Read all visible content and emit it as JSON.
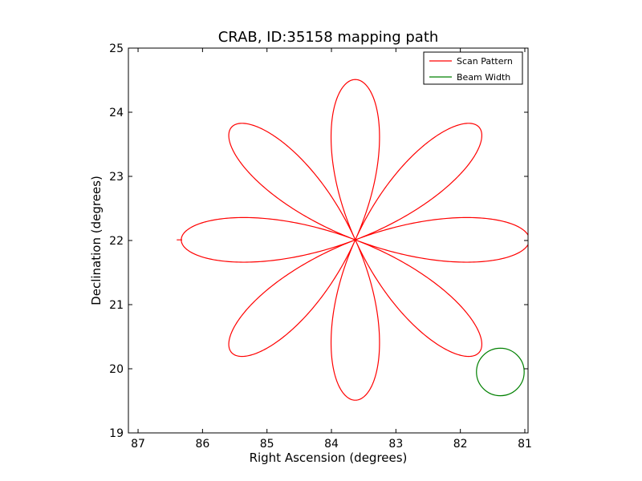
{
  "chart_data": {
    "type": "line",
    "title": "CRAB, ID:35158 mapping path",
    "xlabel": "Right Ascension (degrees)",
    "ylabel": "Declination (degrees)",
    "xlim": [
      87.15,
      80.95
    ],
    "ylim": [
      19,
      25
    ],
    "x_reversed": true,
    "x_ticks": [
      87,
      86,
      85,
      84,
      83,
      82,
      81
    ],
    "y_ticks": [
      19,
      20,
      21,
      22,
      23,
      24,
      25
    ],
    "legend": {
      "position": "top-right",
      "entries": [
        {
          "label": "Scan Pattern",
          "color": "#ff0000"
        },
        {
          "label": "Beam Width",
          "color": "#008000"
        }
      ]
    },
    "scan_pattern": {
      "name": "Scan Pattern",
      "color": "#ff0000",
      "shape": "rose",
      "petals": 8,
      "center": {
        "ra": 83.63,
        "dec": 22.01
      },
      "radius_ra": 2.7,
      "radius_dec": 2.5,
      "tail_end": {
        "ra": 86.4,
        "dec": 22.01
      }
    },
    "beam_width": {
      "name": "Beam Width",
      "color": "#008000",
      "shape": "circle",
      "center": {
        "ra": 81.38,
        "dec": 19.95
      },
      "radius_deg": 0.37
    }
  }
}
